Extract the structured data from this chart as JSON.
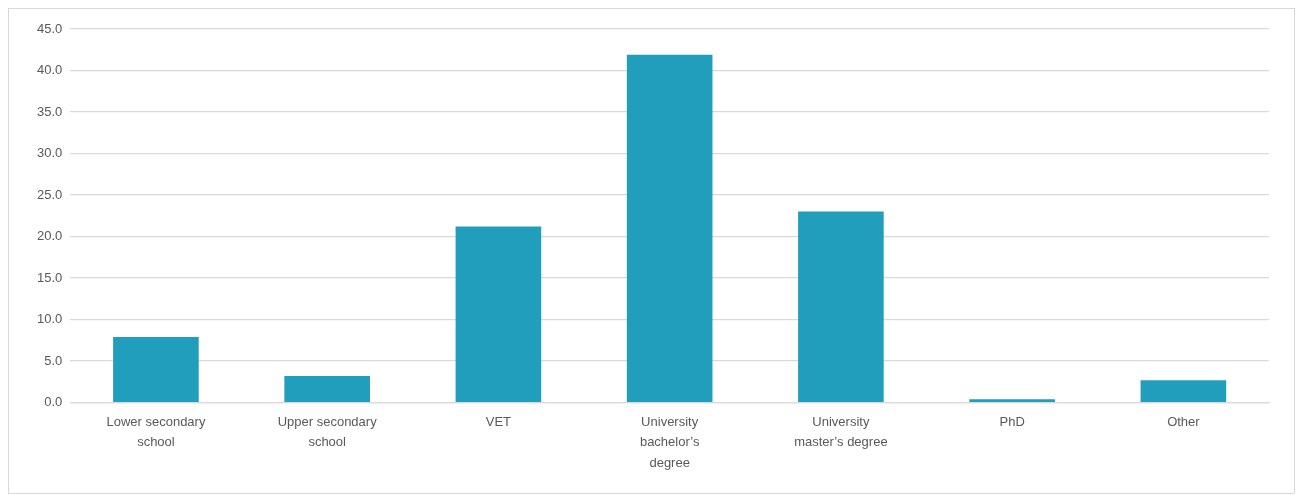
{
  "chart_data": {
    "type": "bar",
    "categories": [
      "Lower secondary school",
      "Upper secondary school",
      "VET",
      "University bachelor’s degree",
      "University master’s degree",
      "PhD",
      "Other"
    ],
    "values": [
      7.9,
      3.2,
      21.2,
      41.9,
      23.0,
      0.4,
      2.7
    ],
    "color": "#219ebc",
    "ylim": [
      0,
      45
    ],
    "yticks": [
      {
        "value": 0,
        "label": "0.0"
      },
      {
        "value": 5,
        "label": "5.0"
      },
      {
        "value": 10,
        "label": "10.0"
      },
      {
        "value": 15,
        "label": "15.0"
      },
      {
        "value": 20,
        "label": "20.0"
      },
      {
        "value": 25,
        "label": "25.0"
      },
      {
        "value": 30,
        "label": "30.0"
      },
      {
        "value": 35,
        "label": "35.0"
      },
      {
        "value": 40,
        "label": "40.0"
      },
      {
        "value": 45,
        "label": "45.0"
      }
    ],
    "grid": "y",
    "legend": false
  }
}
